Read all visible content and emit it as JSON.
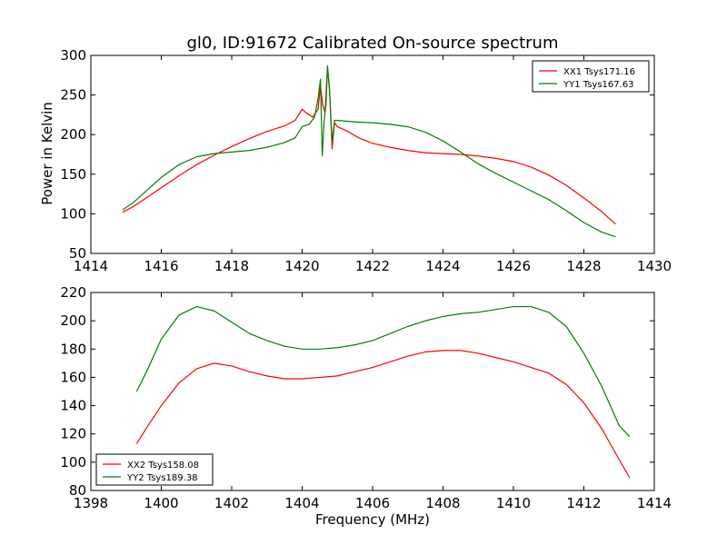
{
  "chart_data": [
    {
      "type": "line",
      "title": "gl0, ID:91672 Calibrated On-source spectrum",
      "xlabel": "",
      "ylabel": "Power in Kelvin",
      "xlim": [
        1414,
        1430
      ],
      "ylim": [
        50,
        300
      ],
      "xticks": [
        1414,
        1416,
        1418,
        1420,
        1422,
        1424,
        1426,
        1428,
        1430
      ],
      "yticks": [
        50,
        100,
        150,
        200,
        250,
        300
      ],
      "legend_position": "top-right",
      "grid": false,
      "series": [
        {
          "name": "XX1 Tsys171.16",
          "color": "#ff0000",
          "points": [
            [
              1414.9,
              102
            ],
            [
              1415.2,
              109
            ],
            [
              1415.5,
              118
            ],
            [
              1416.0,
              133
            ],
            [
              1416.5,
              148
            ],
            [
              1417.0,
              162
            ],
            [
              1417.5,
              174
            ],
            [
              1418.0,
              185
            ],
            [
              1418.5,
              195
            ],
            [
              1419.0,
              204
            ],
            [
              1419.5,
              211
            ],
            [
              1419.8,
              218
            ],
            [
              1420.0,
              232
            ],
            [
              1420.1,
              228
            ],
            [
              1420.3,
              222
            ],
            [
              1420.45,
              232
            ],
            [
              1420.52,
              262
            ],
            [
              1420.58,
              238
            ],
            [
              1420.65,
              228
            ],
            [
              1420.72,
              285
            ],
            [
              1420.78,
              255
            ],
            [
              1420.85,
              182
            ],
            [
              1420.92,
              215
            ],
            [
              1421.0,
              210
            ],
            [
              1421.3,
              204
            ],
            [
              1421.6,
              196
            ],
            [
              1422.0,
              189
            ],
            [
              1422.5,
              184
            ],
            [
              1423.0,
              180
            ],
            [
              1423.5,
              177
            ],
            [
              1424.0,
              176
            ],
            [
              1424.5,
              175
            ],
            [
              1425.0,
              173
            ],
            [
              1425.5,
              170
            ],
            [
              1426.0,
              166
            ],
            [
              1426.5,
              159
            ],
            [
              1427.0,
              149
            ],
            [
              1427.5,
              136
            ],
            [
              1428.0,
              120
            ],
            [
              1428.5,
              103
            ],
            [
              1428.9,
              87
            ]
          ]
        },
        {
          "name": "YY1 Tsys167.63",
          "color": "#008000",
          "points": [
            [
              1414.9,
              105
            ],
            [
              1415.2,
              114
            ],
            [
              1415.5,
              126
            ],
            [
              1416.0,
              146
            ],
            [
              1416.5,
              162
            ],
            [
              1417.0,
              172
            ],
            [
              1417.5,
              176
            ],
            [
              1418.0,
              178
            ],
            [
              1418.5,
              180
            ],
            [
              1419.0,
              184
            ],
            [
              1419.5,
              190
            ],
            [
              1419.8,
              196
            ],
            [
              1420.0,
              210
            ],
            [
              1420.2,
              213
            ],
            [
              1420.35,
              222
            ],
            [
              1420.45,
              245
            ],
            [
              1420.52,
              270
            ],
            [
              1420.57,
              173
            ],
            [
              1420.62,
              215
            ],
            [
              1420.68,
              240
            ],
            [
              1420.72,
              287
            ],
            [
              1420.78,
              255
            ],
            [
              1420.85,
              190
            ],
            [
              1420.92,
              218
            ],
            [
              1421.0,
              218
            ],
            [
              1421.5,
              216
            ],
            [
              1422.0,
              215
            ],
            [
              1422.5,
              213
            ],
            [
              1423.0,
              210
            ],
            [
              1423.5,
              203
            ],
            [
              1424.0,
              192
            ],
            [
              1424.5,
              178
            ],
            [
              1425.0,
              163
            ],
            [
              1425.5,
              151
            ],
            [
              1426.0,
              140
            ],
            [
              1426.5,
              129
            ],
            [
              1427.0,
              118
            ],
            [
              1427.5,
              104
            ],
            [
              1428.0,
              89
            ],
            [
              1428.5,
              77
            ],
            [
              1428.9,
              71
            ]
          ]
        }
      ]
    },
    {
      "type": "line",
      "title": "",
      "xlabel": "Frequency (MHz)",
      "ylabel": "",
      "xlim": [
        1398,
        1414
      ],
      "ylim": [
        80,
        220
      ],
      "xticks": [
        1398,
        1400,
        1402,
        1404,
        1406,
        1408,
        1410,
        1412,
        1414
      ],
      "yticks": [
        80,
        100,
        120,
        140,
        160,
        180,
        200,
        220
      ],
      "legend_position": "bottom-left",
      "grid": false,
      "series": [
        {
          "name": "XX2 Tsys158.08",
          "color": "#ff0000",
          "points": [
            [
              1399.3,
              113
            ],
            [
              1399.6,
              125
            ],
            [
              1400.0,
              140
            ],
            [
              1400.5,
              156
            ],
            [
              1401.0,
              166
            ],
            [
              1401.5,
              170
            ],
            [
              1402.0,
              168
            ],
            [
              1402.5,
              164
            ],
            [
              1403.0,
              161
            ],
            [
              1403.5,
              159
            ],
            [
              1404.0,
              159
            ],
            [
              1404.5,
              160
            ],
            [
              1405.0,
              161
            ],
            [
              1405.5,
              164
            ],
            [
              1406.0,
              167
            ],
            [
              1406.5,
              171
            ],
            [
              1407.0,
              175
            ],
            [
              1407.5,
              178
            ],
            [
              1408.0,
              179
            ],
            [
              1408.5,
              179
            ],
            [
              1409.0,
              177
            ],
            [
              1409.5,
              174
            ],
            [
              1410.0,
              171
            ],
            [
              1410.5,
              167
            ],
            [
              1411.0,
              163
            ],
            [
              1411.5,
              155
            ],
            [
              1412.0,
              142
            ],
            [
              1412.5,
              124
            ],
            [
              1413.0,
              102
            ],
            [
              1413.3,
              89
            ]
          ]
        },
        {
          "name": "YY2 Tsys189.38",
          "color": "#008000",
          "points": [
            [
              1399.3,
              150
            ],
            [
              1399.6,
              165
            ],
            [
              1400.0,
              187
            ],
            [
              1400.5,
              204
            ],
            [
              1401.0,
              210
            ],
            [
              1401.5,
              207
            ],
            [
              1402.0,
              199
            ],
            [
              1402.5,
              191
            ],
            [
              1403.0,
              186
            ],
            [
              1403.5,
              182
            ],
            [
              1404.0,
              180
            ],
            [
              1404.5,
              180
            ],
            [
              1405.0,
              181
            ],
            [
              1405.5,
              183
            ],
            [
              1406.0,
              186
            ],
            [
              1406.5,
              191
            ],
            [
              1407.0,
              196
            ],
            [
              1407.5,
              200
            ],
            [
              1408.0,
              203
            ],
            [
              1408.5,
              205
            ],
            [
              1409.0,
              206
            ],
            [
              1409.5,
              208
            ],
            [
              1410.0,
              210
            ],
            [
              1410.5,
              210
            ],
            [
              1411.0,
              206
            ],
            [
              1411.5,
              196
            ],
            [
              1412.0,
              177
            ],
            [
              1412.5,
              154
            ],
            [
              1413.0,
              126
            ],
            [
              1413.3,
              118
            ]
          ]
        }
      ]
    }
  ]
}
